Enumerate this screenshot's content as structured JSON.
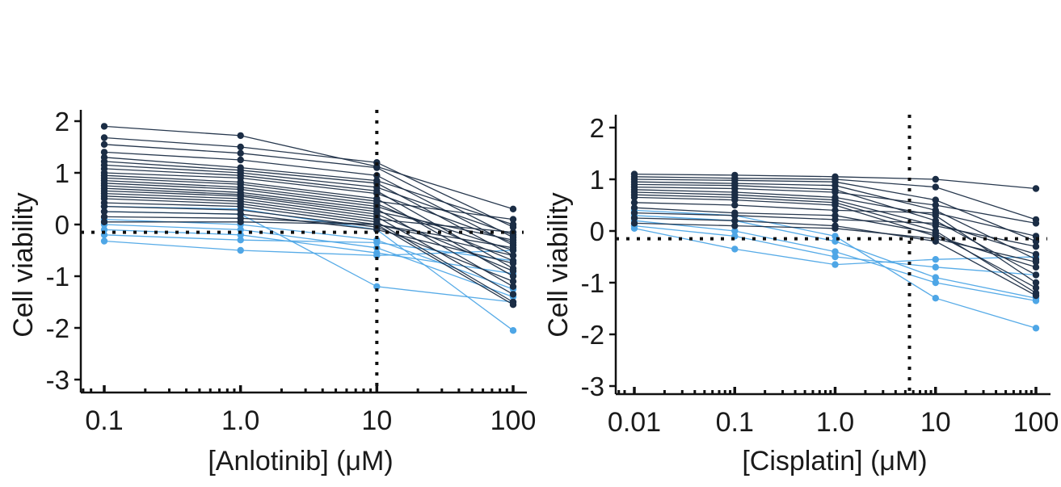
{
  "colors": {
    "dark": "#1b2d45",
    "light": "#4ea6e6",
    "axis": "#111111"
  },
  "chart_data": [
    {
      "type": "line",
      "xscale": "log",
      "xlabel": "[Anlotinib] (μM)",
      "ylabel": "Cell viability",
      "x": [
        0.1,
        1.0,
        10,
        100
      ],
      "xticklabels": [
        "0.1",
        "1.0",
        "10",
        "100"
      ],
      "ylim": [
        -3.2,
        2.2
      ],
      "yticks": [
        2,
        1,
        0,
        -1,
        -2,
        -3
      ],
      "yticklabels": [
        "2",
        "1",
        "0",
        "-1",
        "-2",
        "-3"
      ],
      "threshold_y": -0.15,
      "vertical_line_x": 10,
      "series": [
        {
          "name": "d1",
          "group": "dark",
          "values": [
            1.9,
            1.72,
            1.12,
            0.3
          ]
        },
        {
          "name": "d2",
          "group": "dark",
          "values": [
            1.68,
            1.5,
            1.2,
            -0.05
          ]
        },
        {
          "name": "d3",
          "group": "dark",
          "values": [
            1.55,
            1.38,
            1.1,
            -0.25
          ]
        },
        {
          "name": "d4",
          "group": "dark",
          "values": [
            1.4,
            1.25,
            0.95,
            -0.4
          ]
        },
        {
          "name": "d5",
          "group": "dark",
          "values": [
            1.3,
            1.1,
            0.85,
            0.0
          ]
        },
        {
          "name": "d6",
          "group": "dark",
          "values": [
            1.22,
            1.05,
            0.8,
            -0.6
          ]
        },
        {
          "name": "d7",
          "group": "dark",
          "values": [
            1.15,
            1.0,
            0.72,
            -0.2
          ]
        },
        {
          "name": "d8",
          "group": "dark",
          "values": [
            1.08,
            0.95,
            0.65,
            -0.85
          ]
        },
        {
          "name": "d9",
          "group": "dark",
          "values": [
            1.0,
            0.9,
            0.6,
            -0.35
          ]
        },
        {
          "name": "d10",
          "group": "dark",
          "values": [
            0.95,
            0.82,
            0.5,
            -1.0
          ]
        },
        {
          "name": "d11",
          "group": "dark",
          "values": [
            0.9,
            0.78,
            0.45,
            0.1
          ]
        },
        {
          "name": "d12",
          "group": "dark",
          "values": [
            0.85,
            0.72,
            0.4,
            -0.7
          ]
        },
        {
          "name": "d13",
          "group": "dark",
          "values": [
            0.8,
            0.68,
            0.35,
            -0.5
          ]
        },
        {
          "name": "d14",
          "group": "dark",
          "values": [
            0.75,
            0.62,
            0.3,
            -1.2
          ]
        },
        {
          "name": "d15",
          "group": "dark",
          "values": [
            0.7,
            0.58,
            0.25,
            -0.3
          ]
        },
        {
          "name": "d16",
          "group": "dark",
          "values": [
            0.65,
            0.55,
            0.2,
            -0.9
          ]
        },
        {
          "name": "d17",
          "group": "dark",
          "values": [
            0.6,
            0.5,
            0.15,
            -1.35
          ]
        },
        {
          "name": "d18",
          "group": "dark",
          "values": [
            0.55,
            0.45,
            0.1,
            -0.15
          ]
        },
        {
          "name": "d19",
          "group": "dark",
          "values": [
            0.5,
            0.4,
            0.05,
            -1.5
          ]
        },
        {
          "name": "d20",
          "group": "dark",
          "values": [
            0.42,
            0.35,
            0.0,
            -0.6
          ]
        },
        {
          "name": "d21",
          "group": "dark",
          "values": [
            0.35,
            0.28,
            -0.05,
            -1.1
          ]
        },
        {
          "name": "d22",
          "group": "dark",
          "values": [
            0.25,
            0.2,
            -0.1,
            -0.75
          ]
        },
        {
          "name": "d23",
          "group": "dark",
          "values": [
            0.15,
            0.12,
            0.0,
            -0.45
          ]
        },
        {
          "name": "d24",
          "group": "dark",
          "values": [
            0.05,
            0.05,
            0.0,
            -1.55
          ]
        },
        {
          "name": "l1",
          "group": "light",
          "values": [
            0.35,
            0.3,
            -0.1,
            -2.05
          ]
        },
        {
          "name": "l2",
          "group": "light",
          "values": [
            0.25,
            0.2,
            -1.2,
            -1.5
          ]
        },
        {
          "name": "l3",
          "group": "light",
          "values": [
            0.1,
            0.0,
            -0.3,
            -1.25
          ]
        },
        {
          "name": "l4",
          "group": "light",
          "values": [
            0.0,
            -0.1,
            -0.45,
            -1.4
          ]
        },
        {
          "name": "l5",
          "group": "light",
          "values": [
            -0.1,
            -0.2,
            -0.55,
            -0.95
          ]
        },
        {
          "name": "l6",
          "group": "light",
          "values": [
            -0.2,
            -0.3,
            -0.35,
            -0.7
          ]
        },
        {
          "name": "l7",
          "group": "light",
          "values": [
            -0.32,
            -0.5,
            -0.6,
            -0.5
          ]
        }
      ]
    },
    {
      "type": "line",
      "xscale": "log",
      "xlabel": "[Cisplatin] (μM)",
      "ylabel": "Cell viability",
      "x": [
        0.01,
        0.1,
        1.0,
        10,
        100
      ],
      "xticklabels": [
        "0.01",
        "0.1",
        "1.0",
        "10",
        "100"
      ],
      "ylim": [
        -3.2,
        2.2
      ],
      "yticks": [
        2,
        1,
        0,
        -1,
        -2,
        -3
      ],
      "yticklabels": [
        "2",
        "1",
        "0",
        "-1",
        "-2",
        "-3"
      ],
      "threshold_y": -0.15,
      "vertical_line_x": 5.5,
      "series": [
        {
          "name": "d1",
          "group": "dark",
          "values": [
            1.1,
            1.08,
            1.05,
            1.0,
            0.82
          ]
        },
        {
          "name": "d2",
          "group": "dark",
          "values": [
            1.05,
            1.02,
            1.0,
            0.85,
            0.22
          ]
        },
        {
          "name": "d3",
          "group": "dark",
          "values": [
            1.0,
            0.98,
            0.95,
            0.6,
            -0.2
          ]
        },
        {
          "name": "d4",
          "group": "dark",
          "values": [
            0.95,
            0.92,
            0.88,
            0.4,
            -0.55
          ]
        },
        {
          "name": "d5",
          "group": "dark",
          "values": [
            0.9,
            0.88,
            0.8,
            0.2,
            -0.85
          ]
        },
        {
          "name": "d6",
          "group": "dark",
          "values": [
            0.85,
            0.82,
            0.75,
            0.5,
            0.15
          ]
        },
        {
          "name": "d7",
          "group": "dark",
          "values": [
            0.8,
            0.75,
            0.65,
            0.3,
            -1.0
          ]
        },
        {
          "name": "d8",
          "group": "dark",
          "values": [
            0.75,
            0.7,
            0.6,
            0.1,
            -0.3
          ]
        },
        {
          "name": "d9",
          "group": "dark",
          "values": [
            0.7,
            0.65,
            0.55,
            0.0,
            -1.2
          ]
        },
        {
          "name": "d10",
          "group": "dark",
          "values": [
            0.65,
            0.6,
            0.5,
            -0.1,
            -0.7
          ]
        },
        {
          "name": "d11",
          "group": "dark",
          "values": [
            0.55,
            0.5,
            0.4,
            0.35,
            -0.1
          ]
        },
        {
          "name": "d12",
          "group": "dark",
          "values": [
            0.45,
            0.35,
            0.3,
            -0.05,
            -1.1
          ]
        },
        {
          "name": "d13",
          "group": "dark",
          "values": [
            0.35,
            0.3,
            0.22,
            0.15,
            -0.45
          ]
        },
        {
          "name": "d14",
          "group": "dark",
          "values": [
            0.25,
            0.2,
            0.1,
            -0.2,
            -1.25
          ]
        },
        {
          "name": "d15",
          "group": "dark",
          "values": [
            0.15,
            0.1,
            0.05,
            -0.15,
            -0.6
          ]
        },
        {
          "name": "l1",
          "group": "light",
          "values": [
            0.4,
            0.3,
            -0.1,
            -1.3,
            -1.88
          ]
        },
        {
          "name": "l2",
          "group": "light",
          "values": [
            0.3,
            0.2,
            -0.2,
            -0.9,
            -1.3
          ]
        },
        {
          "name": "l3",
          "group": "light",
          "values": [
            0.2,
            0.0,
            -0.4,
            -1.0,
            -1.35
          ]
        },
        {
          "name": "l4",
          "group": "light",
          "values": [
            0.1,
            -0.1,
            -0.5,
            -0.7,
            -0.85
          ]
        },
        {
          "name": "l5",
          "group": "light",
          "values": [
            0.05,
            -0.35,
            -0.65,
            -0.55,
            -0.5
          ]
        }
      ]
    }
  ]
}
